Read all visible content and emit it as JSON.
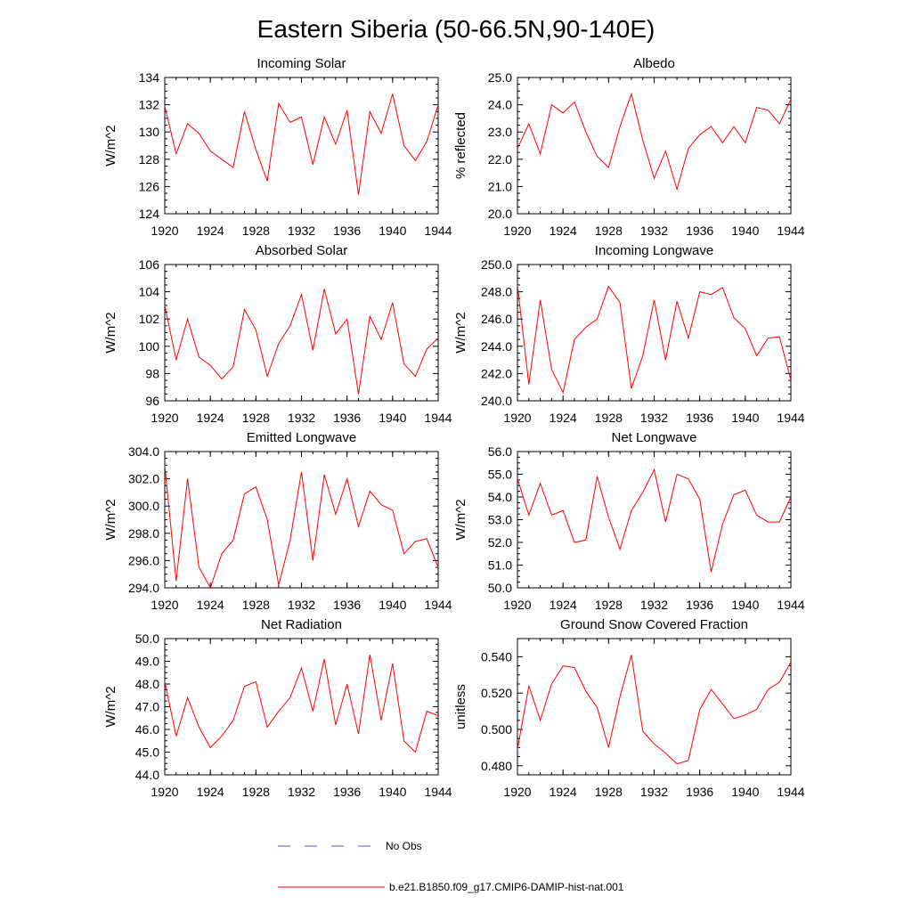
{
  "title": "Eastern Siberia (50-66.5N,90-140E)",
  "chart_data": [
    {
      "type": "line",
      "title": "Incoming Solar",
      "ylabel": "W/m^2",
      "xlim": [
        1920,
        1944
      ],
      "ylim": [
        124,
        134
      ],
      "xticks": [
        "1920",
        "1924",
        "1928",
        "1932",
        "1936",
        "1940",
        "1944"
      ],
      "yticks": [
        "124",
        "126",
        "128",
        "130",
        "132",
        "134"
      ],
      "x": [
        1920,
        1921,
        1922,
        1923,
        1924,
        1925,
        1926,
        1927,
        1928,
        1929,
        1930,
        1931,
        1932,
        1933,
        1934,
        1935,
        1936,
        1937,
        1938,
        1939,
        1940,
        1941,
        1942,
        1943,
        1944
      ],
      "y": [
        131.9,
        128.4,
        130.6,
        129.9,
        128.6,
        128.0,
        127.4,
        131.5,
        128.7,
        126.4,
        132.1,
        130.7,
        131.1,
        127.6,
        131.1,
        129.1,
        131.6,
        125.4,
        131.5,
        129.9,
        132.8,
        129.0,
        127.9,
        129.3,
        132.0
      ]
    },
    {
      "type": "line",
      "title": "Albedo",
      "ylabel": "% reflected",
      "xlim": [
        1920,
        1944
      ],
      "ylim": [
        20.0,
        25.0
      ],
      "xticks": [
        "1920",
        "1924",
        "1928",
        "1932",
        "1936",
        "1940",
        "1944"
      ],
      "yticks": [
        "20.0",
        "21.0",
        "22.0",
        "23.0",
        "24.0",
        "25.0"
      ],
      "x": [
        1920,
        1921,
        1922,
        1923,
        1924,
        1925,
        1926,
        1927,
        1928,
        1929,
        1930,
        1931,
        1932,
        1933,
        1934,
        1935,
        1936,
        1937,
        1938,
        1939,
        1940,
        1941,
        1942,
        1943,
        1944
      ],
      "y": [
        22.4,
        23.3,
        22.2,
        24.0,
        23.7,
        24.1,
        23.0,
        22.1,
        21.7,
        23.2,
        24.4,
        22.7,
        21.3,
        22.3,
        20.9,
        22.4,
        22.9,
        23.2,
        22.6,
        23.2,
        22.6,
        23.9,
        23.8,
        23.3,
        24.2
      ]
    },
    {
      "type": "line",
      "title": "Absorbed Solar",
      "ylabel": "W/m^2",
      "xlim": [
        1920,
        1944
      ],
      "ylim": [
        96,
        106
      ],
      "xticks": [
        "1920",
        "1924",
        "1928",
        "1932",
        "1936",
        "1940",
        "1944"
      ],
      "yticks": [
        "96",
        "98",
        "100",
        "102",
        "104",
        "106"
      ],
      "x": [
        1920,
        1921,
        1922,
        1923,
        1924,
        1925,
        1926,
        1927,
        1928,
        1929,
        1930,
        1931,
        1932,
        1933,
        1934,
        1935,
        1936,
        1937,
        1938,
        1939,
        1940,
        1941,
        1942,
        1943,
        1944
      ],
      "y": [
        103.0,
        99.0,
        102.0,
        99.2,
        98.6,
        97.6,
        98.5,
        102.7,
        101.2,
        97.8,
        100.2,
        101.5,
        103.8,
        99.7,
        104.2,
        100.9,
        102.0,
        96.5,
        102.2,
        100.5,
        103.2,
        98.7,
        97.8,
        99.8,
        100.6
      ]
    },
    {
      "type": "line",
      "title": "Incoming Longwave",
      "ylabel": "W/m^2",
      "xlim": [
        1920,
        1944
      ],
      "ylim": [
        240.0,
        250.0
      ],
      "xticks": [
        "1920",
        "1924",
        "1928",
        "1932",
        "1936",
        "1940",
        "1944"
      ],
      "yticks": [
        "240.0",
        "242.0",
        "244.0",
        "246.0",
        "248.0",
        "250.0"
      ],
      "x": [
        1920,
        1921,
        1922,
        1923,
        1924,
        1925,
        1926,
        1927,
        1928,
        1929,
        1930,
        1931,
        1932,
        1933,
        1934,
        1935,
        1936,
        1937,
        1938,
        1939,
        1940,
        1941,
        1942,
        1943,
        1944
      ],
      "y": [
        248.5,
        241.2,
        247.4,
        242.3,
        240.6,
        244.5,
        245.4,
        246.0,
        248.4,
        247.2,
        240.9,
        243.3,
        247.4,
        243.0,
        247.3,
        244.6,
        248.0,
        247.8,
        248.3,
        246.1,
        245.3,
        243.3,
        244.6,
        244.7,
        241.5
      ]
    },
    {
      "type": "line",
      "title": "Emitted Longwave",
      "ylabel": "W/m^2",
      "xlim": [
        1920,
        1944
      ],
      "ylim": [
        294.0,
        304.0
      ],
      "xticks": [
        "1920",
        "1924",
        "1928",
        "1932",
        "1936",
        "1940",
        "1944"
      ],
      "yticks": [
        "294.0",
        "296.0",
        "298.0",
        "300.0",
        "302.0",
        "304.0"
      ],
      "x": [
        1920,
        1921,
        1922,
        1923,
        1924,
        1925,
        1926,
        1927,
        1928,
        1929,
        1930,
        1931,
        1932,
        1933,
        1934,
        1935,
        1936,
        1937,
        1938,
        1939,
        1940,
        1941,
        1942,
        1943,
        1944
      ],
      "y": [
        303.0,
        294.5,
        302.0,
        295.5,
        294.0,
        296.5,
        297.5,
        300.9,
        301.4,
        299.0,
        294.2,
        297.5,
        302.5,
        296.0,
        302.3,
        299.4,
        302.0,
        298.5,
        301.1,
        300.1,
        299.7,
        296.5,
        297.4,
        297.6,
        295.5
      ]
    },
    {
      "type": "line",
      "title": "Net Longwave",
      "ylabel": "W/m^2",
      "xlim": [
        1920,
        1944
      ],
      "ylim": [
        50.0,
        56.0
      ],
      "xticks": [
        "1920",
        "1924",
        "1928",
        "1932",
        "1936",
        "1940",
        "1944"
      ],
      "yticks": [
        "50.0",
        "51.0",
        "52.0",
        "53.0",
        "54.0",
        "55.0",
        "56.0"
      ],
      "x": [
        1920,
        1921,
        1922,
        1923,
        1924,
        1925,
        1926,
        1927,
        1928,
        1929,
        1930,
        1931,
        1932,
        1933,
        1934,
        1935,
        1936,
        1937,
        1938,
        1939,
        1940,
        1941,
        1942,
        1943,
        1944
      ],
      "y": [
        54.8,
        53.2,
        54.6,
        53.2,
        53.4,
        52.0,
        52.1,
        54.9,
        53.1,
        51.7,
        53.4,
        54.2,
        55.2,
        52.9,
        55.0,
        54.8,
        53.9,
        50.7,
        52.8,
        54.1,
        54.3,
        53.2,
        52.9,
        52.9,
        54.0
      ]
    },
    {
      "type": "line",
      "title": "Net Radiation",
      "ylabel": "W/m^2",
      "xlim": [
        1920,
        1944
      ],
      "ylim": [
        44.0,
        50.0
      ],
      "xticks": [
        "1920",
        "1924",
        "1928",
        "1932",
        "1936",
        "1940",
        "1944"
      ],
      "yticks": [
        "44.0",
        "45.0",
        "46.0",
        "47.0",
        "48.0",
        "49.0",
        "50.0"
      ],
      "x": [
        1920,
        1921,
        1922,
        1923,
        1924,
        1925,
        1926,
        1927,
        1928,
        1929,
        1930,
        1931,
        1932,
        1933,
        1934,
        1935,
        1936,
        1937,
        1938,
        1939,
        1940,
        1941,
        1942,
        1943,
        1944
      ],
      "y": [
        48.1,
        45.7,
        47.4,
        46.1,
        45.2,
        45.7,
        46.4,
        47.9,
        48.1,
        46.1,
        46.8,
        47.4,
        48.7,
        46.8,
        49.1,
        46.2,
        48.0,
        45.8,
        49.3,
        46.4,
        48.9,
        45.5,
        45.0,
        46.8,
        46.6
      ]
    },
    {
      "type": "line",
      "title": "Ground Snow Covered Fraction",
      "ylabel": "unitless",
      "xlim": [
        1920,
        1944
      ],
      "ylim": [
        0.475,
        0.55
      ],
      "xticks": [
        "1920",
        "1924",
        "1928",
        "1932",
        "1936",
        "1940",
        "1944"
      ],
      "yticks": [
        "0.480",
        "0.500",
        "0.520",
        "0.540"
      ],
      "ytick_values": [
        0.48,
        0.5,
        0.52,
        0.54
      ],
      "x": [
        1920,
        1921,
        1922,
        1923,
        1924,
        1925,
        1926,
        1927,
        1928,
        1929,
        1930,
        1931,
        1932,
        1933,
        1934,
        1935,
        1936,
        1937,
        1938,
        1939,
        1940,
        1941,
        1942,
        1943,
        1944
      ],
      "y": [
        0.489,
        0.524,
        0.505,
        0.525,
        0.535,
        0.534,
        0.521,
        0.512,
        0.49,
        0.518,
        0.541,
        0.499,
        0.492,
        0.487,
        0.481,
        0.483,
        0.511,
        0.522,
        0.514,
        0.506,
        0.508,
        0.511,
        0.522,
        0.526,
        0.537
      ]
    }
  ],
  "legend": [
    {
      "label": "No Obs",
      "color": "#5555cc",
      "style": "dashed"
    },
    {
      "label": "b.e21.B1850.f09_g17.CMIP6-DAMIP-hist-nat.001",
      "color": "#ff0000",
      "style": "solid"
    }
  ],
  "colors": {
    "model_line": "#ff0000",
    "obs_line": "#5555cc",
    "axes": "#000000"
  }
}
